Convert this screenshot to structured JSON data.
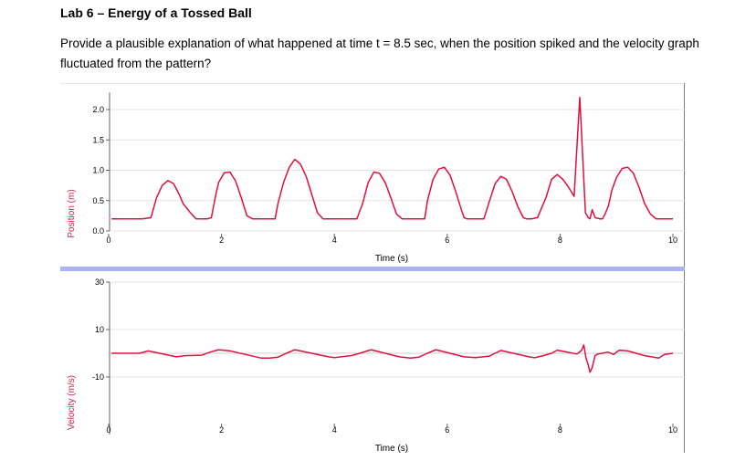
{
  "document": {
    "title": "Lab 6 – Energy of a Tossed Ball",
    "question": "Provide a plausible explanation of what happened at time t = 8.5 sec, when the position spiked and the velocity graph fluctuated from the pattern?"
  },
  "colors": {
    "trace": "#e0103c",
    "divider": "#a9b4f0",
    "axis_label": "#d0204a",
    "grid": "#e4e4e4"
  },
  "chart_data": [
    {
      "type": "line",
      "ylabel": "Position (m)",
      "xlabel": "Time (s)",
      "xlim": [
        0,
        10
      ],
      "ylim": [
        0,
        2.2
      ],
      "xticks": [
        "0",
        "2",
        "4",
        "6",
        "8",
        "10"
      ],
      "yticks": [
        "0.0",
        "0.5",
        "1.0",
        "1.5",
        "2.0"
      ],
      "grid": true,
      "series": [
        {
          "x": [
            0.05,
            0.3,
            0.6,
            0.75,
            0.85,
            0.95,
            1.05,
            1.15,
            1.25,
            1.32,
            1.45,
            1.55,
            1.65,
            1.75,
            1.82,
            1.9,
            1.95,
            2.05,
            2.15,
            2.25,
            2.35,
            2.45,
            2.55,
            2.6,
            2.7,
            2.95,
            3.0,
            3.1,
            3.2,
            3.3,
            3.4,
            3.5,
            3.6,
            3.7,
            3.8,
            3.9,
            3.95,
            4.05,
            4.4,
            4.5,
            4.6,
            4.7,
            4.8,
            4.9,
            5.0,
            5.1,
            5.2,
            5.25,
            5.35,
            5.6,
            5.65,
            5.75,
            5.85,
            5.95,
            6.05,
            6.15,
            6.25,
            6.3,
            6.35,
            6.45,
            6.65,
            6.75,
            6.85,
            6.95,
            7.05,
            7.15,
            7.25,
            7.35,
            7.4,
            7.5,
            7.6,
            7.75,
            7.85,
            7.95,
            8.05,
            8.15,
            8.25,
            8.35,
            8.45,
            8.5,
            8.53,
            8.57,
            8.62,
            8.7,
            8.75,
            8.8,
            8.86,
            8.92,
            9.0,
            9.1,
            9.2,
            9.3,
            9.4,
            9.5,
            9.6,
            9.7,
            9.78,
            9.9,
            10.0
          ],
          "y": [
            0.2,
            0.2,
            0.2,
            0.22,
            0.55,
            0.75,
            0.83,
            0.78,
            0.6,
            0.45,
            0.3,
            0.2,
            0.2,
            0.2,
            0.22,
            0.6,
            0.8,
            0.96,
            0.97,
            0.82,
            0.55,
            0.25,
            0.2,
            0.2,
            0.2,
            0.2,
            0.45,
            0.8,
            1.05,
            1.18,
            1.1,
            0.9,
            0.6,
            0.3,
            0.2,
            0.2,
            0.2,
            0.2,
            0.2,
            0.45,
            0.8,
            0.97,
            0.95,
            0.8,
            0.55,
            0.28,
            0.2,
            0.2,
            0.2,
            0.2,
            0.5,
            0.85,
            1.02,
            1.05,
            0.92,
            0.65,
            0.35,
            0.22,
            0.2,
            0.2,
            0.2,
            0.5,
            0.78,
            0.9,
            0.85,
            0.65,
            0.4,
            0.22,
            0.2,
            0.2,
            0.22,
            0.55,
            0.85,
            0.93,
            0.85,
            0.72,
            0.57,
            2.2,
            0.3,
            0.22,
            0.2,
            0.35,
            0.22,
            0.2,
            0.2,
            0.28,
            0.42,
            0.68,
            0.88,
            1.03,
            1.05,
            0.95,
            0.72,
            0.45,
            0.28,
            0.2,
            0.2,
            0.2,
            0.2
          ]
        }
      ]
    },
    {
      "type": "line",
      "ylabel": "Velocity (m/s)",
      "xlabel": "Time (s)",
      "xlim": [
        0,
        10
      ],
      "ylim": [
        -20,
        30
      ],
      "xticks": [
        "0",
        "2",
        "4",
        "6",
        "8",
        "10"
      ],
      "yticks": [
        "-10",
        "10",
        "30"
      ],
      "grid": true,
      "series": [
        {
          "x": [
            0.05,
            0.35,
            0.55,
            0.7,
            1.2,
            1.35,
            1.65,
            1.8,
            1.95,
            2.15,
            2.7,
            2.85,
            3.0,
            3.15,
            3.3,
            3.9,
            4.0,
            4.3,
            4.45,
            4.65,
            5.15,
            5.35,
            5.5,
            5.65,
            5.8,
            6.3,
            6.5,
            6.75,
            6.85,
            6.95,
            7.45,
            7.55,
            7.7,
            7.85,
            7.95,
            8.1,
            8.3,
            8.38,
            8.42,
            8.46,
            8.5,
            8.53,
            8.57,
            8.62,
            8.67,
            8.75,
            8.85,
            8.95,
            9.0,
            9.05,
            9.2,
            9.5,
            9.75,
            9.85,
            10.0
          ],
          "y": [
            0,
            0,
            0,
            1,
            -1.5,
            -1,
            -0.8,
            0.5,
            1.5,
            1,
            -2,
            -2,
            -1.6,
            0,
            1.5,
            -1.5,
            -1.8,
            -1,
            0,
            1.5,
            -1.5,
            -2,
            -1.6,
            0,
            1.5,
            -1.5,
            -1.8,
            -1.2,
            0,
            1.2,
            -1.5,
            -1.9,
            -1,
            0,
            1.3,
            0.6,
            -0.3,
            1.2,
            3.5,
            -2,
            -5,
            -8,
            -6,
            -1,
            -0.3,
            0,
            0.5,
            -0.5,
            0.5,
            1.3,
            1,
            -1,
            -2,
            -0.5,
            0
          ]
        }
      ]
    }
  ]
}
